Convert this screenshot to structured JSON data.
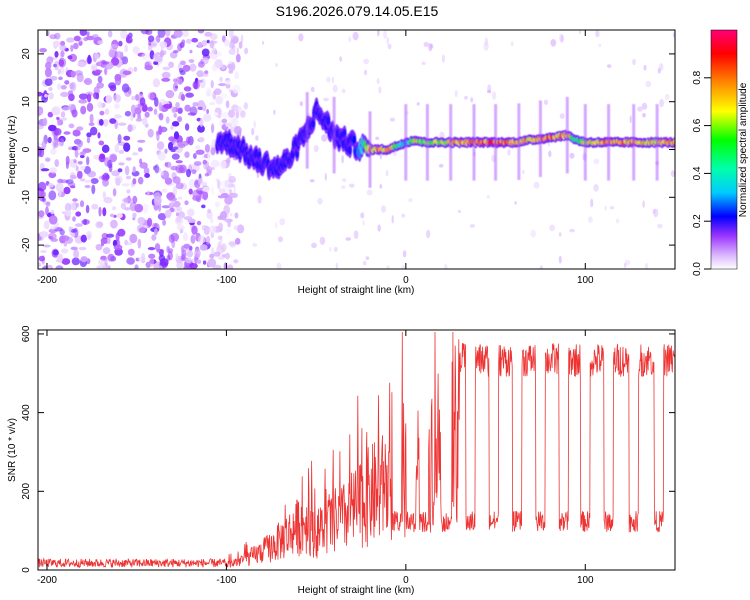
{
  "title": "S196.2026.079.14.05.E15",
  "colorbar": {
    "label": "Normalized spectral amplitude",
    "ticks": [
      "0.0",
      "0.2",
      "0.4",
      "0.6",
      "0.8"
    ],
    "tick_values": [
      0,
      0.2,
      0.4,
      0.6,
      0.8
    ],
    "range": [
      0,
      1
    ]
  },
  "chart_data": [
    {
      "type": "heatmap",
      "name": "spectrogram",
      "xlabel": "Height of straight line (km)",
      "ylabel": "Frequency (Hz)",
      "xlim": [
        -205,
        150
      ],
      "ylim": [
        -25,
        25
      ],
      "xticks": [
        -200,
        -100,
        0,
        100
      ],
      "xtick_labels": [
        "-200",
        "-100",
        "0",
        "100"
      ],
      "yticks": [
        20,
        10,
        0,
        -10,
        -20
      ],
      "ytick_labels": [
        "20",
        "10",
        "0",
        "-10",
        "-20"
      ],
      "ridge": {
        "x": [
          -105,
          -95,
          -85,
          -78,
          -72,
          -65,
          -60,
          -55,
          -50,
          -45,
          -40,
          -35,
          -30,
          -25,
          -20,
          -10,
          0,
          5,
          10,
          20,
          30,
          40,
          50,
          60,
          70,
          80,
          90,
          95,
          100,
          110,
          120,
          130,
          140,
          150
        ],
        "freq": [
          2,
          1,
          -2,
          -3,
          -4,
          -2,
          1,
          4,
          8,
          6,
          3,
          2,
          1,
          0.5,
          0,
          0,
          1.5,
          2,
          1.5,
          1.5,
          1.5,
          1.5,
          1.5,
          1.5,
          2,
          2.5,
          3,
          2,
          1.5,
          1.5,
          1.5,
          1.5,
          1.5,
          1.5
        ],
        "amplitude": [
          0.15,
          0.2,
          0.2,
          0.18,
          0.2,
          0.18,
          0.15,
          0.12,
          0.15,
          0.12,
          0.12,
          0.15,
          0.2,
          0.35,
          0.8,
          0.85,
          0.3,
          0.8,
          0.6,
          0.7,
          0.85,
          0.9,
          0.9,
          0.85,
          0.8,
          0.9,
          0.8,
          0.5,
          0.7,
          0.85,
          0.85,
          0.8,
          0.75,
          0.85
        ]
      },
      "noise_region_x": [
        -205,
        -100
      ],
      "noise_amplitude": 0.08
    },
    {
      "type": "line",
      "name": "snr",
      "xlabel": "Height of straight line (km)",
      "ylabel": "SNR (10 * v/v)",
      "xlim": [
        -205,
        150
      ],
      "ylim": [
        0,
        610
      ],
      "xticks": [
        -200,
        -100,
        0,
        100
      ],
      "xtick_labels": [
        "-200",
        "-100",
        "0",
        "100"
      ],
      "yticks": [
        0,
        200,
        400,
        600
      ],
      "ytick_labels": [
        "0",
        "200",
        "400",
        "600"
      ],
      "color": "#ee3333",
      "envelope": {
        "x": [
          -205,
          -100,
          -95,
          -85,
          -75,
          -65,
          -60,
          -55,
          -50,
          -45,
          -40,
          -35,
          -30,
          -25,
          -20,
          -15,
          -10,
          -5,
          0,
          5,
          10,
          15,
          20,
          25,
          30,
          150
        ],
        "snr": [
          22,
          22,
          30,
          55,
          90,
          140,
          170,
          190,
          140,
          160,
          190,
          200,
          230,
          260,
          290,
          310,
          330,
          350,
          390,
          420,
          450,
          480,
          510,
          535,
          545,
          545
        ]
      },
      "dropouts_x": [
        -5,
        3,
        10,
        23,
        36,
        49,
        62,
        75,
        88,
        100,
        113,
        127,
        141
      ],
      "dropout_level": 120
    }
  ]
}
